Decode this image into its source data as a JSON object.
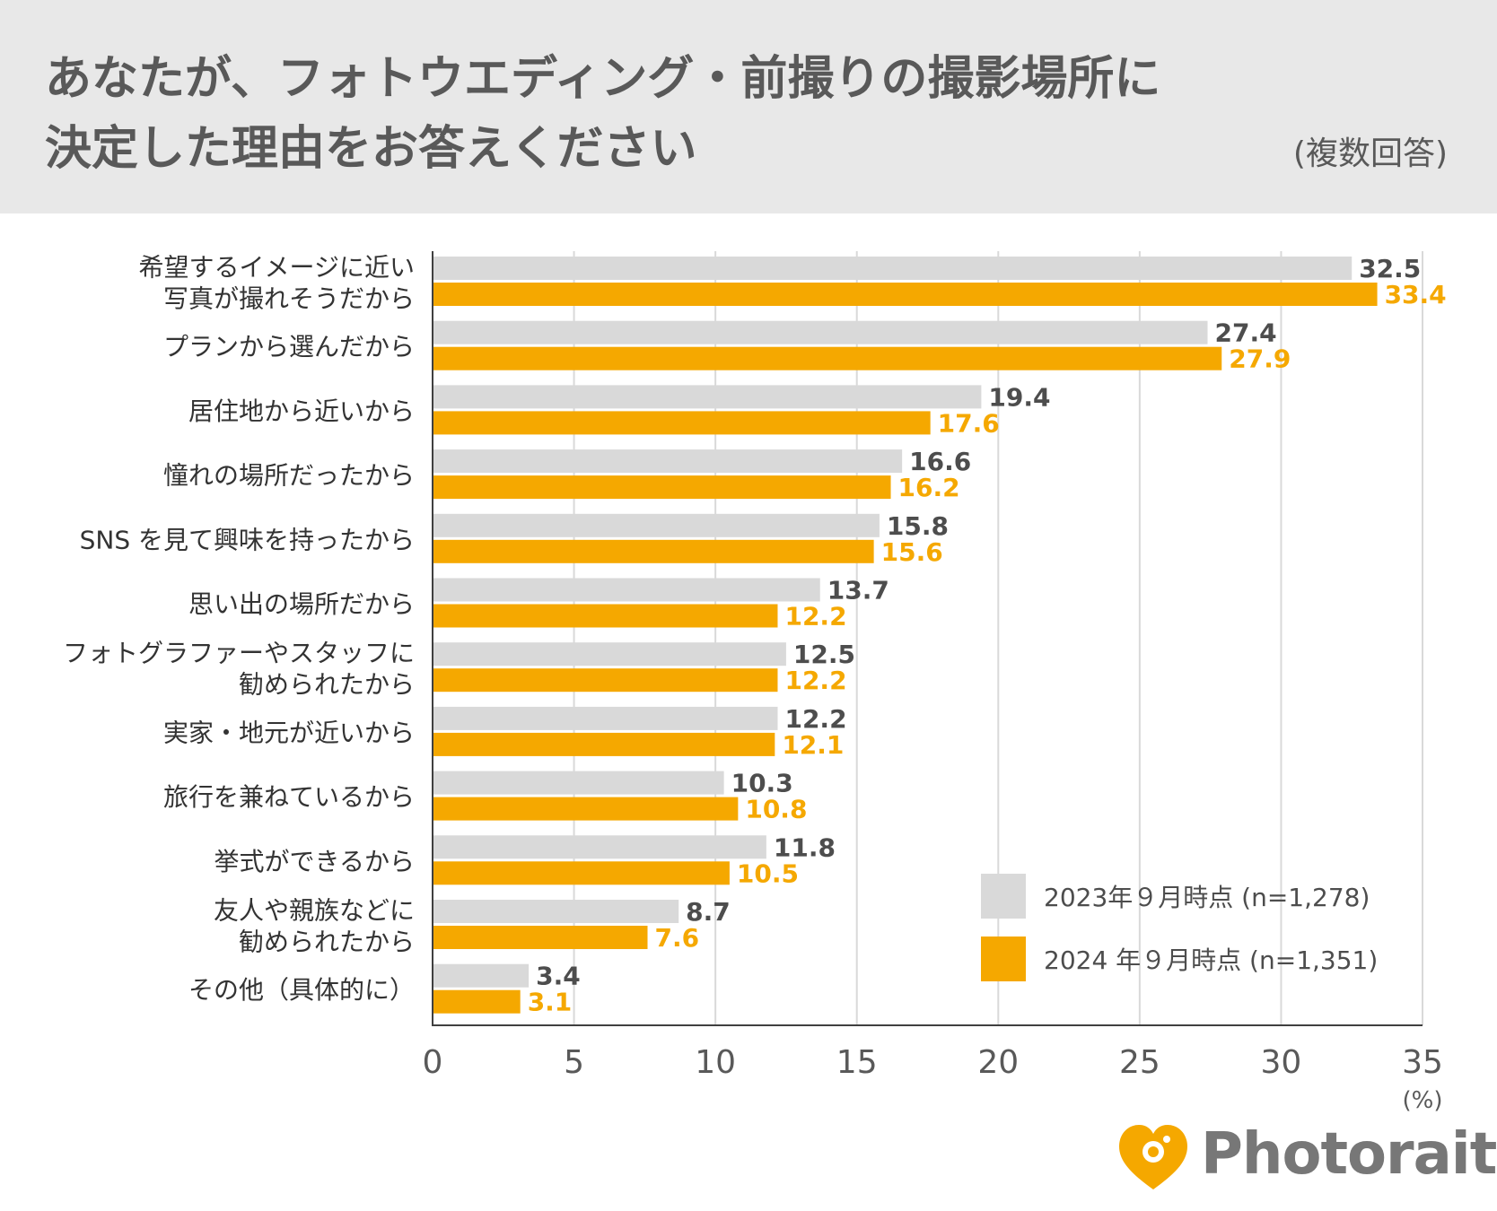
{
  "header": {
    "title_line1": "あなたが、フォトウエディング・前撮りの撮影場所に",
    "title_line2": "決定した理由をお答えください",
    "note": "(複数回答)"
  },
  "brand": {
    "name": "Photorait",
    "color": "#f5a800"
  },
  "colors": {
    "series_2023": "#d9d9d9",
    "series_2024": "#f5a800",
    "label_2023": "#4d4d4d",
    "label_2024": "#f5a800",
    "axis": "#404040",
    "grid": "#d9d9d9"
  },
  "chart_data": {
    "type": "bar",
    "orientation": "horizontal",
    "title": "あなたが、フォトウエディング・前撮りの撮影場所に決定した理由をお答えください",
    "unit_label": "(%)",
    "xlim": [
      0,
      35
    ],
    "xticks": [
      0,
      5,
      10,
      15,
      20,
      25,
      30,
      35
    ],
    "grid": true,
    "legend_position": "bottom-right",
    "categories": [
      [
        "希望するイメージに近い",
        "写真が撮れそうだから"
      ],
      [
        "プランから選んだから"
      ],
      [
        "居住地から近いから"
      ],
      [
        "憧れの場所だったから"
      ],
      [
        "SNS を見て興味を持ったから"
      ],
      [
        "思い出の場所だから"
      ],
      [
        "フォトグラファーやスタッフに",
        "勧められたから"
      ],
      [
        "実家・地元が近いから"
      ],
      [
        "旅行を兼ねているから"
      ],
      [
        "挙式ができるから"
      ],
      [
        "友人や親族などに",
        "勧められたから"
      ],
      [
        "その他（具体的に）"
      ]
    ],
    "series": [
      {
        "name": "2023年９月時点 (n=1,278)",
        "values": [
          32.5,
          27.4,
          19.4,
          16.6,
          15.8,
          13.7,
          12.5,
          12.2,
          10.3,
          11.8,
          8.7,
          3.4
        ]
      },
      {
        "name": "2024 年９月時点 (n=1,351)",
        "values": [
          33.4,
          27.9,
          17.6,
          16.2,
          15.6,
          12.2,
          12.2,
          12.1,
          10.8,
          10.5,
          7.6,
          3.1
        ]
      }
    ]
  }
}
